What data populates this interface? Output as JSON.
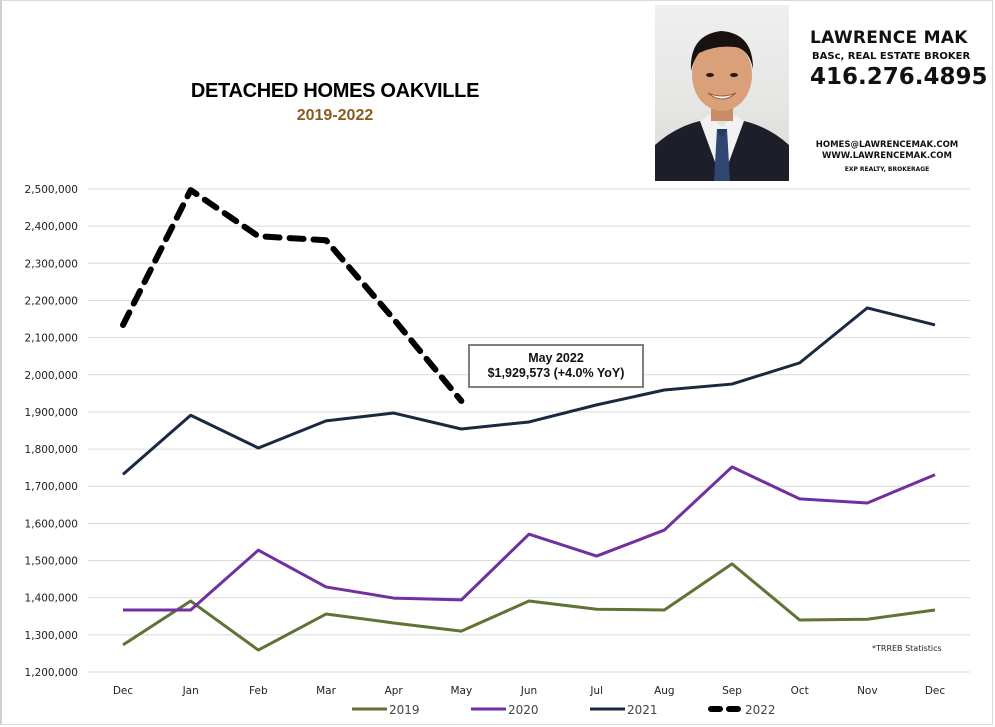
{
  "header": {
    "title": "DETACHED HOMES OAKVILLE",
    "subtitle": "2019-2022"
  },
  "agent_card": {
    "name": "LAWRENCE MAK",
    "role": "BASc, REAL ESTATE BROKER",
    "phone": "416.276.4895",
    "email": "HOMES@LAWRENCEMAK.COM",
    "website": "WWW.LAWRENCEMAK.COM",
    "brokerage": "EXP REALTY, BROKERAGE",
    "photo": "agent-portrait-photo"
  },
  "callout": {
    "line1": "May 2022",
    "line2": "$1,929,573  (+4.0%  YoY)"
  },
  "source_note": "*TRREB Statistics",
  "colors": {
    "series_2019": "#5f7334",
    "series_2020": "#7030a0",
    "series_2021": "#1a2940",
    "series_2022": "#000000",
    "gridline": "#d9d9d9",
    "subtitle": "#8b5a1e"
  },
  "chart_data": {
    "type": "line",
    "title": "DETACHED HOMES OAKVILLE",
    "subtitle": "2019-2022",
    "xlabel": "",
    "ylabel": "",
    "categories": [
      "Dec",
      "Jan",
      "Feb",
      "Mar",
      "Apr",
      "May",
      "Jun",
      "Jul",
      "Aug",
      "Sep",
      "Oct",
      "Nov",
      "Dec"
    ],
    "ylim": [
      1200000,
      2500000
    ],
    "yticks": [
      1200000,
      1300000,
      1400000,
      1500000,
      1600000,
      1700000,
      1800000,
      1900000,
      2000000,
      2100000,
      2200000,
      2300000,
      2400000,
      2500000
    ],
    "ytick_labels": [
      "1,200,000",
      "1,300,000",
      "1,400,000",
      "1,500,000",
      "1,600,000",
      "1,700,000",
      "1,800,000",
      "1,900,000",
      "2,000,000",
      "2,100,000",
      "2,200,000",
      "2,300,000",
      "2,400,000",
      "2,500,000"
    ],
    "grid": true,
    "legend_position": "bottom",
    "series": [
      {
        "name": "2019",
        "style": "solid",
        "values": [
          1273000,
          1391000,
          1259000,
          1356000,
          1332000,
          1310000,
          1391000,
          1369000,
          1367000,
          1491000,
          1340000,
          1342000,
          1367000
        ]
      },
      {
        "name": "2020",
        "style": "solid",
        "values": [
          1367000,
          1367000,
          1528000,
          1429000,
          1399000,
          1394000,
          1571000,
          1512000,
          1582000,
          1752000,
          1666000,
          1655000,
          1731000
        ]
      },
      {
        "name": "2021",
        "style": "solid",
        "values": [
          1732000,
          1891000,
          1803000,
          1876000,
          1897000,
          1854000,
          1873000,
          1919000,
          1959000,
          1975000,
          2032000,
          2180000,
          2134000
        ]
      },
      {
        "name": "2022",
        "style": "dashed",
        "values": [
          2134000,
          2497000,
          2373000,
          2362000,
          2150000,
          1929573,
          null,
          null,
          null,
          null,
          null,
          null,
          null
        ]
      }
    ],
    "annotations": [
      {
        "category": "May",
        "series": "2022",
        "text": "May 2022 $1,929,573 (+4.0% YoY)"
      }
    ]
  }
}
